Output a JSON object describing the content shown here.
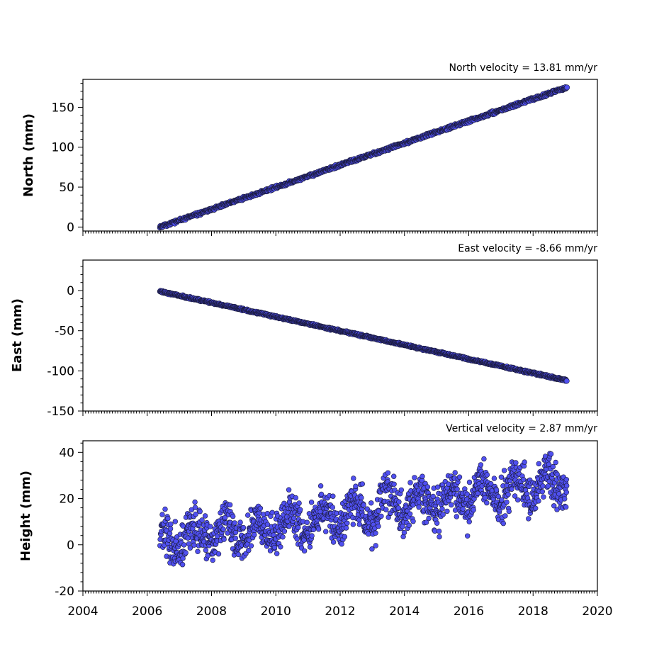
{
  "chart_data": [
    {
      "type": "scatter",
      "title": "North velocity = 13.81 mm/yr",
      "xlabel": "",
      "ylabel": "North (mm)",
      "xlim": [
        2004,
        2020
      ],
      "ylim": [
        -5,
        185
      ],
      "yticks": [
        0,
        50,
        100,
        150
      ],
      "xticks": [
        2004,
        2006,
        2008,
        2010,
        2012,
        2014,
        2016,
        2018,
        2020
      ],
      "show_xticklabels": false,
      "velocity_mm_per_yr": 13.81,
      "start": {
        "x": 2006.4,
        "y": 0
      },
      "end": {
        "x": 2019.05,
        "y": 175
      },
      "scatter_mm": 2.2,
      "color": "#5050f0",
      "edge_color": "#1a1a3a",
      "grid": false
    },
    {
      "type": "scatter",
      "title": "East velocity = -8.66 mm/yr",
      "xlabel": "",
      "ylabel": "East (mm)",
      "xlim": [
        2004,
        2020
      ],
      "ylim": [
        -150,
        38
      ],
      "yticks": [
        -150,
        -100,
        -50,
        0
      ],
      "xticks": [
        2004,
        2006,
        2008,
        2010,
        2012,
        2014,
        2016,
        2018,
        2020
      ],
      "show_xticklabels": false,
      "velocity_mm_per_yr": -8.66,
      "start": {
        "x": 2006.4,
        "y": -1
      },
      "end": {
        "x": 2019.05,
        "y": -112
      },
      "scatter_mm": 1.5,
      "color": "#5050f0",
      "edge_color": "#1a1a3a",
      "grid": false
    },
    {
      "type": "scatter",
      "title": "Vertical velocity = 2.87 mm/yr",
      "xlabel": "",
      "ylabel": "Height (mm)",
      "xlim": [
        2004,
        2020
      ],
      "ylim": [
        -20,
        45
      ],
      "yticks": [
        -20,
        0,
        20,
        40
      ],
      "xticks": [
        2004,
        2006,
        2008,
        2010,
        2012,
        2014,
        2016,
        2018,
        2020
      ],
      "show_xticklabels": true,
      "velocity_mm_per_yr": 2.87,
      "start": {
        "x": 2006.4,
        "y": 0
      },
      "end": {
        "x": 2019.05,
        "y": 28
      },
      "scatter_mm": 4.5,
      "color": "#5050f0",
      "edge_color": "#1a1a3a",
      "grid": false
    }
  ]
}
